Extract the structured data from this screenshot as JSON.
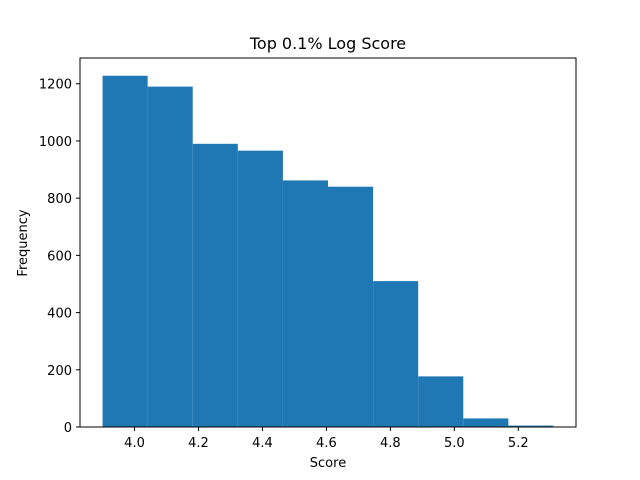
{
  "chart_data": {
    "type": "bar",
    "title": "Top 0.1% Log Score",
    "xlabel": "Score",
    "ylabel": "Frequency",
    "bin_edges": [
      3.9,
      4.041,
      4.182,
      4.323,
      4.464,
      4.605,
      4.746,
      4.887,
      5.028,
      5.169,
      5.31
    ],
    "values": [
      1228,
      1190,
      990,
      966,
      862,
      840,
      510,
      177,
      30,
      5
    ],
    "xlim": [
      3.8295,
      5.3805
    ],
    "ylim": [
      0,
      1290
    ],
    "xticks": [
      4.0,
      4.2,
      4.4,
      4.6,
      4.8,
      5.0,
      5.2
    ],
    "xtick_labels": [
      "4.0",
      "4.2",
      "4.4",
      "4.6",
      "4.8",
      "5.0",
      "5.2"
    ],
    "yticks": [
      0,
      200,
      400,
      600,
      800,
      1000,
      1200
    ],
    "ytick_labels": [
      "0",
      "200",
      "400",
      "600",
      "800",
      "1000",
      "1200"
    ],
    "bar_color": "#1f77b4",
    "grid": false
  }
}
